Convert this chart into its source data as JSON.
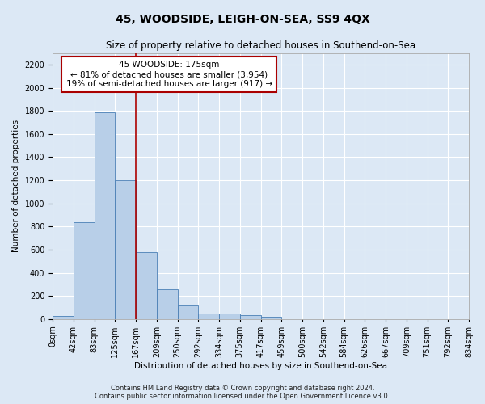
{
  "title": "45, WOODSIDE, LEIGH-ON-SEA, SS9 4QX",
  "subtitle": "Size of property relative to detached houses in Southend-on-Sea",
  "xlabel": "Distribution of detached houses by size in Southend-on-Sea",
  "ylabel": "Number of detached properties",
  "bar_values": [
    25,
    840,
    1790,
    1200,
    580,
    260,
    115,
    50,
    48,
    32,
    18,
    0,
    0,
    0,
    0,
    0,
    0,
    0,
    0,
    0
  ],
  "bin_labels": [
    "0sqm",
    "42sqm",
    "83sqm",
    "125sqm",
    "167sqm",
    "209sqm",
    "250sqm",
    "292sqm",
    "334sqm",
    "375sqm",
    "417sqm",
    "459sqm",
    "500sqm",
    "542sqm",
    "584sqm",
    "626sqm",
    "667sqm",
    "709sqm",
    "751sqm",
    "792sqm",
    "834sqm"
  ],
  "n_bins": 20,
  "bar_color": "#b8cfe8",
  "bar_edge_color": "#4a7fb5",
  "bg_color": "#dce8f5",
  "fig_bg_color": "#dce8f5",
  "grid_color": "#ffffff",
  "vline_x": 4,
  "vline_color": "#aa0000",
  "annotation_text": "45 WOODSIDE: 175sqm\n← 81% of detached houses are smaller (3,954)\n19% of semi-detached houses are larger (917) →",
  "annotation_box_color": "#ffffff",
  "annotation_box_edge": "#aa0000",
  "ylim": [
    0,
    2300
  ],
  "yticks": [
    0,
    200,
    400,
    600,
    800,
    1000,
    1200,
    1400,
    1600,
    1800,
    2000,
    2200
  ],
  "footer": "Contains HM Land Registry data © Crown copyright and database right 2024.\nContains public sector information licensed under the Open Government Licence v3.0.",
  "title_fontsize": 10,
  "subtitle_fontsize": 8.5,
  "axis_label_fontsize": 7.5,
  "tick_fontsize": 7,
  "footer_fontsize": 6,
  "annot_fontsize": 7.5
}
